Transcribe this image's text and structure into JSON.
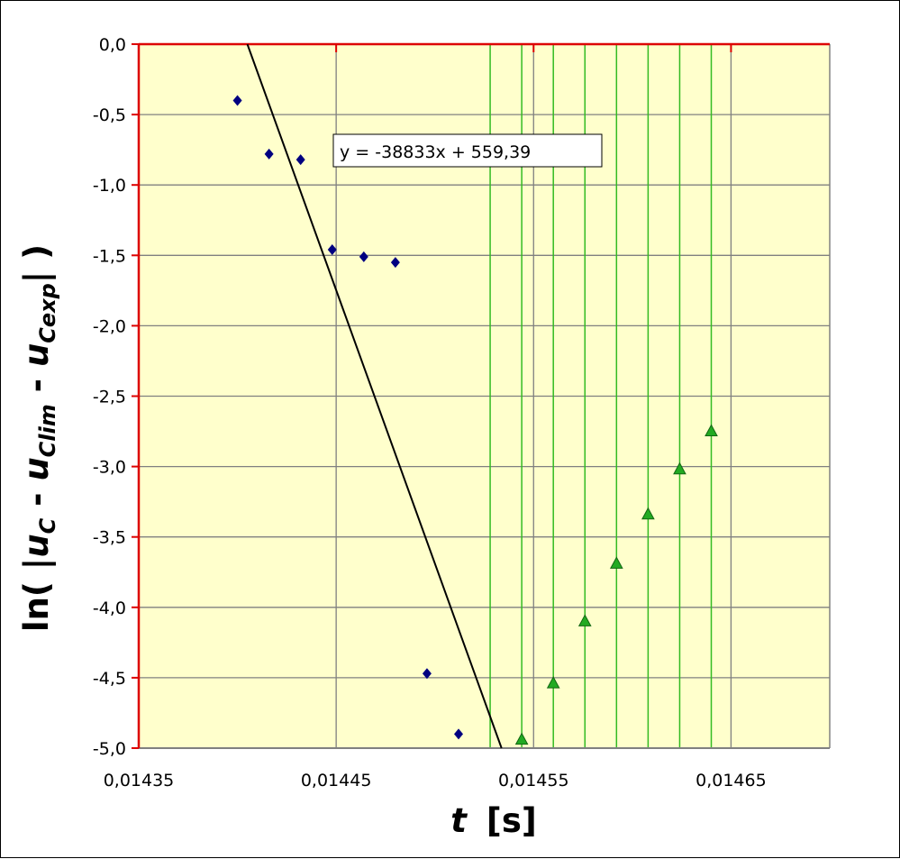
{
  "chart_data": {
    "type": "scatter",
    "xlabel": {
      "main": "t",
      "unit": "[s]"
    },
    "ylabel": {
      "prefix": "ln( |",
      "u1": "u",
      "s1": "C",
      "m1": " - ",
      "u2": "u",
      "s2": "Clim",
      "m2": " - ",
      "u3": "u",
      "s3": "Cexp",
      "suffix": "| )"
    },
    "xlim": [
      0.01435,
      0.0147
    ],
    "ylim": [
      -5.0,
      0.0
    ],
    "x_ticks": [
      0.01435,
      0.01445,
      0.01455,
      0.01465
    ],
    "x_tick_labels": [
      "0,01435",
      "0,01445",
      "0,01455",
      "0,01465"
    ],
    "y_ticks": [
      0,
      -0.5,
      -1,
      -1.5,
      -2,
      -2.5,
      -3,
      -3.5,
      -4,
      -4.5,
      -5
    ],
    "y_tick_labels": [
      "0,0",
      "-0,5",
      "-1,0",
      "-1,5",
      "-2,0",
      "-2,5",
      "-3,0",
      "-3,5",
      "-4,0",
      "-4,5",
      "-5,0"
    ],
    "grid": true,
    "colors": {
      "plot_bg": "#ffffcc",
      "grid": "#808080",
      "axis_red": "#dd0000",
      "diamond": "#000080",
      "triangle": "#22aa22",
      "drop_line": "#33bb22",
      "trend": "#000000"
    },
    "series": [
      {
        "marker": "diamond",
        "x": [
          0.0144,
          0.014416,
          0.014432,
          0.014448,
          0.014464,
          0.01448,
          0.014496,
          0.014512
        ],
        "y": [
          -0.4,
          -0.78,
          -0.82,
          -1.46,
          -1.51,
          -1.55,
          -4.47,
          -4.9
        ]
      },
      {
        "marker": "triangle",
        "x": [
          0.014544,
          0.01456,
          0.014576,
          0.014592,
          0.014608,
          0.014624,
          0.01464
        ],
        "y": [
          -4.94,
          -4.54,
          -4.1,
          -3.69,
          -3.34,
          -3.02,
          -2.75
        ]
      }
    ],
    "vertical_lines_x": [
      0.014528,
      0.014544,
      0.01456,
      0.014576,
      0.014592,
      0.014608,
      0.014624,
      0.01464
    ],
    "trendline": {
      "slope": -38833,
      "intercept": 559.39,
      "label": "y = -38833x + 559,39"
    }
  }
}
